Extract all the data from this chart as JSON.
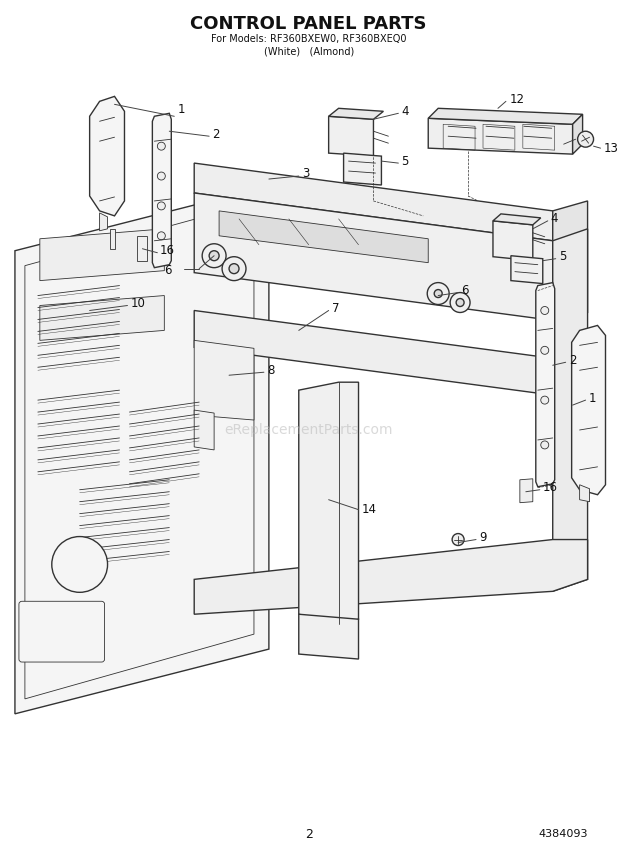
{
  "title": "CONTROL PANEL PARTS",
  "subtitle1": "For Models: RF360BXEW0, RF360BXEQ0",
  "subtitle2": "(White)   (Almond)",
  "page_num": "2",
  "doc_num": "4384093",
  "bg_color": "#ffffff",
  "line_color": "#333333",
  "text_color": "#111111",
  "watermark": "eReplacementParts.com",
  "title_fontsize": 13,
  "sub_fontsize": 7,
  "label_fontsize": 8.5
}
